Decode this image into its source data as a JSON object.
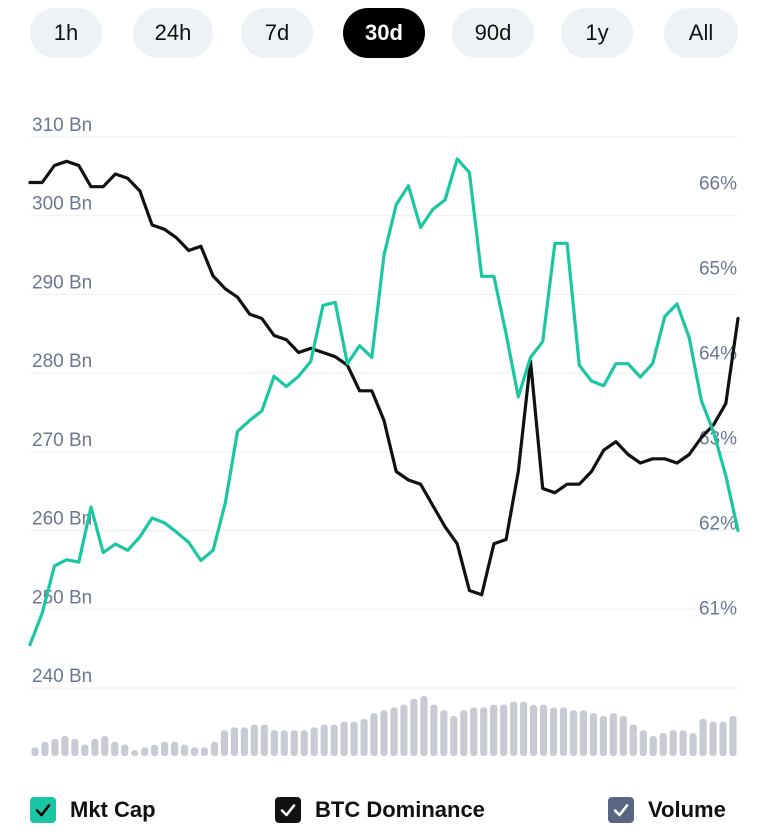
{
  "tabs": {
    "items": [
      "1h",
      "24h",
      "7d",
      "30d",
      "90d",
      "1y",
      "All"
    ],
    "active": "30d"
  },
  "colors": {
    "mkt_cap": "#1bc7a3",
    "btc_dominance": "#111111",
    "volume": "#c8cbd3",
    "axis_text": "#6b7790",
    "grid": "#eceef2"
  },
  "legend": {
    "mkt_cap": "Mkt Cap",
    "btc_dominance": "BTC Dominance",
    "volume": "Volume"
  },
  "chart_data": {
    "type": "line",
    "y_left": {
      "ticks": [
        "310 Bn",
        "300 Bn",
        "290 Bn",
        "280 Bn",
        "270 Bn",
        "260 Bn",
        "250 Bn",
        "240 Bn"
      ],
      "tick_values": [
        310,
        300,
        290,
        280,
        270,
        260,
        250,
        240
      ],
      "range": [
        240,
        310
      ]
    },
    "y_right": {
      "ticks": [
        "66%",
        "65%",
        "64%",
        "63%",
        "62%",
        "61%"
      ],
      "tick_values": [
        66,
        65,
        64,
        63,
        62,
        61
      ],
      "range": [
        60.5,
        66.5
      ]
    },
    "grid": true,
    "legend_position": "bottom",
    "series": [
      {
        "name": "Mkt Cap",
        "axis": "left",
        "values": [
          245.5,
          249.5,
          255.5,
          256.3,
          256,
          263,
          257.2,
          258.3,
          257.5,
          259.2,
          261.6,
          261,
          259.8,
          258.5,
          256.2,
          257.5,
          263.5,
          272.6,
          274,
          275.2,
          279.6,
          278.3,
          279.6,
          281.5,
          288.6,
          289,
          281.2,
          283.5,
          282,
          295,
          301.4,
          303.8,
          298.5,
          300.8,
          302,
          307.2,
          305.5,
          292.3,
          292.3,
          285,
          277,
          282,
          284,
          296.5,
          296.5,
          281,
          279,
          278.4,
          281.2,
          281.2,
          279.5,
          281.2,
          287.2,
          288.8,
          284.5,
          276.5,
          272.5,
          267,
          260
        ]
      },
      {
        "name": "BTC Dominance",
        "axis": "right",
        "values": [
          66.0,
          66.0,
          66.2,
          66.25,
          66.2,
          65.95,
          65.95,
          66.1,
          66.05,
          65.9,
          65.5,
          65.45,
          65.35,
          65.2,
          65.25,
          64.9,
          64.75,
          64.65,
          64.45,
          64.4,
          64.2,
          64.15,
          64.0,
          64.05,
          64.0,
          63.95,
          63.85,
          63.55,
          63.55,
          63.2,
          62.6,
          62.5,
          62.45,
          62.2,
          61.95,
          61.75,
          61.2,
          61.15,
          61.75,
          61.8,
          62.6,
          63.9,
          62.4,
          62.35,
          62.45,
          62.45,
          62.6,
          62.85,
          62.95,
          62.8,
          62.7,
          62.75,
          62.75,
          62.7,
          62.8,
          63.0,
          63.15,
          63.4,
          64.4
        ]
      },
      {
        "name": "Volume",
        "axis": "none",
        "values": [
          3,
          5,
          6,
          7,
          6,
          4,
          6,
          7,
          5,
          4,
          2,
          3,
          4,
          5,
          5,
          4,
          3,
          3,
          5,
          9,
          10,
          10,
          11,
          11,
          9,
          9,
          9,
          9,
          10,
          11,
          11,
          12,
          12,
          13,
          15,
          16,
          17,
          18,
          20,
          21,
          18,
          16,
          14,
          16,
          17,
          17,
          18,
          18,
          19,
          19,
          18,
          18,
          17,
          17,
          16,
          16,
          15,
          14,
          15,
          14,
          11,
          9,
          7,
          8,
          9,
          9,
          8,
          13,
          12,
          12,
          14
        ]
      }
    ]
  }
}
